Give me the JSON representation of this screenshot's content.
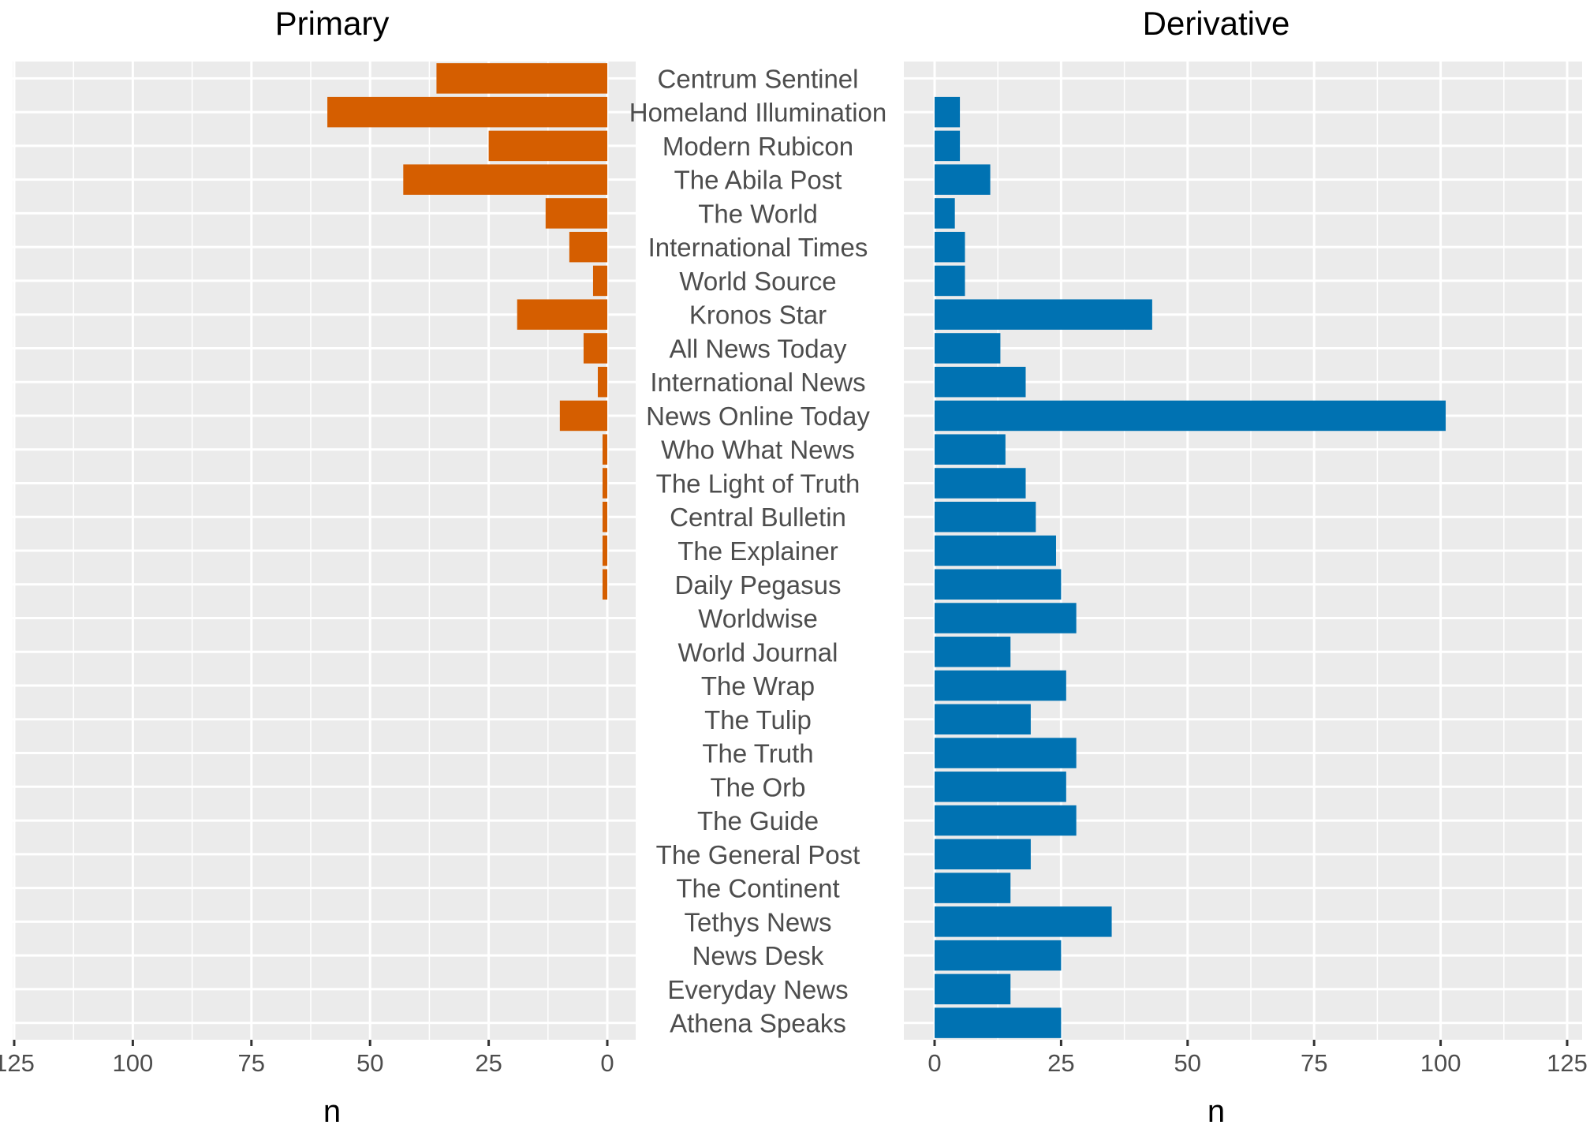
{
  "chart_data": {
    "type": "bar",
    "orientation": "horizontal",
    "categories": [
      "Centrum Sentinel",
      "Homeland Illumination",
      "Modern Rubicon",
      "The Abila Post",
      "The World",
      "International Times",
      "World Source",
      "Kronos Star",
      "All News Today",
      "International News",
      "News Online Today",
      "Who What News",
      "The Light of Truth",
      "Central Bulletin",
      "The Explainer",
      "Daily Pegasus",
      "Worldwise",
      "World Journal",
      "The Wrap",
      "The Tulip",
      "The Truth",
      "The Orb",
      "The Guide",
      "The General Post",
      "The Continent",
      "Tethys News",
      "News Desk",
      "Everyday News",
      "Athena Speaks"
    ],
    "panels": [
      {
        "title": "Primary",
        "xlabel": "n",
        "direction": "reversed",
        "xlim": [
          0,
          125
        ],
        "ticks": [
          0,
          25,
          50,
          75,
          100,
          125
        ],
        "color": "#D55E00",
        "values": [
          36,
          59,
          25,
          43,
          13,
          8,
          3,
          19,
          5,
          2,
          10,
          1,
          1,
          1,
          1,
          1,
          0,
          0,
          0,
          0,
          0,
          0,
          0,
          0,
          0,
          0,
          0,
          0,
          0
        ]
      },
      {
        "title": "Derivative",
        "xlabel": "n",
        "direction": "normal",
        "xlim": [
          0,
          125
        ],
        "ticks": [
          0,
          25,
          50,
          75,
          100,
          125
        ],
        "color": "#0072B2",
        "values": [
          0,
          5,
          5,
          11,
          4,
          6,
          6,
          43,
          13,
          18,
          101,
          14,
          18,
          20,
          24,
          25,
          28,
          15,
          26,
          19,
          28,
          26,
          28,
          19,
          15,
          35,
          25,
          15,
          25
        ]
      }
    ]
  }
}
